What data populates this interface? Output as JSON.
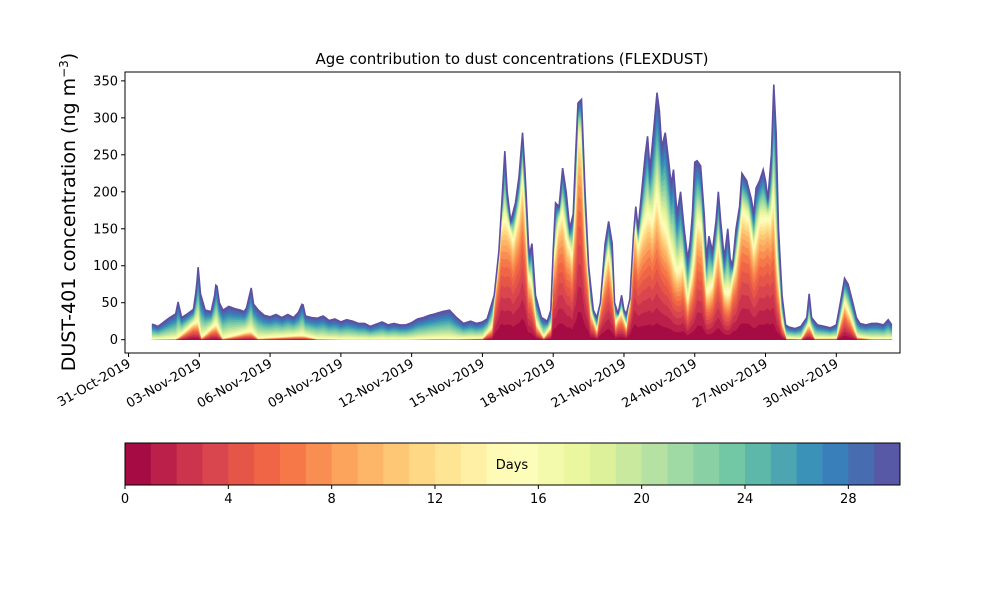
{
  "chart_data": {
    "type": "area",
    "title": "Age contribution to dust concentrations (FLEXDUST)",
    "ylabel_main": "DUST-401 concentration (ng m",
    "ylabel_sup": "−3",
    "ylabel_close": ")",
    "xlabel": "",
    "ylim": [
      -18,
      362
    ],
    "yticks": [
      0,
      50,
      100,
      150,
      200,
      250,
      300,
      350
    ],
    "xlim_days": [
      -0.15,
      32.7
    ],
    "xtick_days": [
      0,
      3,
      6,
      9,
      12,
      15,
      18,
      21,
      24,
      27,
      30
    ],
    "xtick_labels": [
      "31-Oct-2019",
      "03-Nov-2019",
      "06-Nov-2019",
      "09-Nov-2019",
      "12-Nov-2019",
      "15-Nov-2019",
      "18-Nov-2019",
      "21-Nov-2019",
      "24-Nov-2019",
      "27-Nov-2019",
      "30-Nov-2019"
    ],
    "x_start": "01-Nov-2019",
    "x_days_start": 1.0,
    "total_points": [
      [
        1.0,
        21
      ],
      [
        1.25,
        18
      ],
      [
        1.5,
        24
      ],
      [
        1.75,
        30
      ],
      [
        2.0,
        35
      ],
      [
        2.1,
        51
      ],
      [
        2.25,
        30
      ],
      [
        2.5,
        35
      ],
      [
        2.75,
        41
      ],
      [
        2.88,
        70
      ],
      [
        2.95,
        98
      ],
      [
        3.05,
        62
      ],
      [
        3.25,
        40
      ],
      [
        3.5,
        38
      ],
      [
        3.65,
        60
      ],
      [
        3.72,
        79
      ],
      [
        3.85,
        50
      ],
      [
        4.0,
        40
      ],
      [
        4.25,
        45
      ],
      [
        4.5,
        42
      ],
      [
        4.75,
        40
      ],
      [
        4.9,
        38
      ],
      [
        5.0,
        43
      ],
      [
        5.2,
        70
      ],
      [
        5.3,
        48
      ],
      [
        5.5,
        40
      ],
      [
        5.75,
        33
      ],
      [
        6.0,
        31
      ],
      [
        6.25,
        34
      ],
      [
        6.5,
        30
      ],
      [
        6.75,
        34
      ],
      [
        7.0,
        30
      ],
      [
        7.2,
        37
      ],
      [
        7.38,
        50
      ],
      [
        7.5,
        32
      ],
      [
        7.75,
        30
      ],
      [
        8.0,
        29
      ],
      [
        8.25,
        32
      ],
      [
        8.5,
        26
      ],
      [
        8.75,
        28
      ],
      [
        9.0,
        24
      ],
      [
        9.25,
        27
      ],
      [
        9.5,
        25
      ],
      [
        9.75,
        22
      ],
      [
        10.0,
        22
      ],
      [
        10.25,
        18
      ],
      [
        10.5,
        21
      ],
      [
        10.75,
        24
      ],
      [
        11.0,
        20
      ],
      [
        11.25,
        22
      ],
      [
        11.5,
        20
      ],
      [
        11.75,
        20
      ],
      [
        12.0,
        23
      ],
      [
        12.25,
        28
      ],
      [
        12.5,
        30
      ],
      [
        12.75,
        33
      ],
      [
        13.0,
        35
      ],
      [
        13.3,
        38
      ],
      [
        13.6,
        40
      ],
      [
        13.9,
        30
      ],
      [
        14.2,
        22
      ],
      [
        14.5,
        25
      ],
      [
        14.75,
        22
      ],
      [
        15.0,
        24
      ],
      [
        15.2,
        28
      ],
      [
        15.5,
        60
      ],
      [
        15.7,
        120
      ],
      [
        15.85,
        200
      ],
      [
        15.95,
        255
      ],
      [
        16.05,
        200
      ],
      [
        16.2,
        160
      ],
      [
        16.4,
        185
      ],
      [
        16.55,
        220
      ],
      [
        16.7,
        280
      ],
      [
        16.82,
        220
      ],
      [
        16.95,
        130
      ],
      [
        17.0,
        115
      ],
      [
        17.1,
        130
      ],
      [
        17.25,
        60
      ],
      [
        17.5,
        30
      ],
      [
        17.75,
        25
      ],
      [
        17.9,
        40
      ],
      [
        18.0,
        120
      ],
      [
        18.1,
        185
      ],
      [
        18.25,
        180
      ],
      [
        18.4,
        232
      ],
      [
        18.55,
        200
      ],
      [
        18.7,
        150
      ],
      [
        18.85,
        170
      ],
      [
        18.95,
        250
      ],
      [
        19.05,
        320
      ],
      [
        19.2,
        325
      ],
      [
        19.35,
        200
      ],
      [
        19.5,
        100
      ],
      [
        19.7,
        40
      ],
      [
        19.85,
        30
      ],
      [
        20.0,
        50
      ],
      [
        20.2,
        130
      ],
      [
        20.35,
        160
      ],
      [
        20.5,
        130
      ],
      [
        20.6,
        50
      ],
      [
        20.75,
        35
      ],
      [
        20.9,
        60
      ],
      [
        21.0,
        40
      ],
      [
        21.1,
        35
      ],
      [
        21.25,
        55
      ],
      [
        21.4,
        140
      ],
      [
        21.5,
        180
      ],
      [
        21.6,
        150
      ],
      [
        21.75,
        200
      ],
      [
        21.9,
        250
      ],
      [
        22.0,
        275
      ],
      [
        22.1,
        230
      ],
      [
        22.25,
        280
      ],
      [
        22.4,
        334
      ],
      [
        22.5,
        310
      ],
      [
        22.6,
        260
      ],
      [
        22.75,
        280
      ],
      [
        22.9,
        240
      ],
      [
        23.0,
        210
      ],
      [
        23.1,
        230
      ],
      [
        23.25,
        170
      ],
      [
        23.4,
        200
      ],
      [
        23.55,
        150
      ],
      [
        23.7,
        110
      ],
      [
        23.8,
        130
      ],
      [
        23.9,
        170
      ],
      [
        24.0,
        240
      ],
      [
        24.1,
        242
      ],
      [
        24.25,
        235
      ],
      [
        24.4,
        170
      ],
      [
        24.5,
        110
      ],
      [
        24.6,
        140
      ],
      [
        24.75,
        120
      ],
      [
        24.9,
        160
      ],
      [
        25.0,
        200
      ],
      [
        25.1,
        160
      ],
      [
        25.25,
        110
      ],
      [
        25.4,
        150
      ],
      [
        25.5,
        110
      ],
      [
        25.6,
        100
      ],
      [
        25.75,
        150
      ],
      [
        25.9,
        180
      ],
      [
        26.0,
        225
      ],
      [
        26.2,
        215
      ],
      [
        26.4,
        190
      ],
      [
        26.5,
        170
      ],
      [
        26.6,
        205
      ],
      [
        26.75,
        215
      ],
      [
        26.9,
        230
      ],
      [
        27.0,
        215
      ],
      [
        27.1,
        190
      ],
      [
        27.25,
        250
      ],
      [
        27.35,
        345
      ],
      [
        27.45,
        280
      ],
      [
        27.55,
        150
      ],
      [
        27.7,
        60
      ],
      [
        27.85,
        20
      ],
      [
        28.0,
        17
      ],
      [
        28.25,
        15
      ],
      [
        28.5,
        18
      ],
      [
        28.75,
        30
      ],
      [
        28.85,
        62
      ],
      [
        28.95,
        30
      ],
      [
        29.2,
        20
      ],
      [
        29.5,
        18
      ],
      [
        29.75,
        16
      ],
      [
        30.0,
        20
      ],
      [
        30.2,
        55
      ],
      [
        30.35,
        83
      ],
      [
        30.5,
        75
      ],
      [
        30.7,
        50
      ],
      [
        30.85,
        30
      ],
      [
        31.0,
        22
      ],
      [
        31.25,
        20
      ],
      [
        31.5,
        22
      ],
      [
        31.75,
        22
      ],
      [
        32.0,
        20
      ],
      [
        32.2,
        27
      ],
      [
        32.35,
        20
      ]
    ],
    "young_points": [
      [
        1.0,
        1
      ],
      [
        2.0,
        2
      ],
      [
        2.95,
        30
      ],
      [
        3.1,
        5
      ],
      [
        3.72,
        25
      ],
      [
        4.0,
        3
      ],
      [
        5.2,
        15
      ],
      [
        5.5,
        3
      ],
      [
        7.38,
        8
      ],
      [
        8.0,
        2
      ],
      [
        9.0,
        1
      ],
      [
        10.0,
        1
      ],
      [
        11.0,
        1
      ],
      [
        12.0,
        1
      ],
      [
        13.0,
        2
      ],
      [
        14.0,
        2
      ],
      [
        15.0,
        3
      ],
      [
        15.4,
        20
      ],
      [
        15.6,
        90
      ],
      [
        15.8,
        160
      ],
      [
        15.95,
        175
      ],
      [
        16.1,
        160
      ],
      [
        16.3,
        140
      ],
      [
        16.55,
        180
      ],
      [
        16.7,
        230
      ],
      [
        16.82,
        180
      ],
      [
        16.95,
        90
      ],
      [
        17.1,
        80
      ],
      [
        17.3,
        25
      ],
      [
        17.6,
        5
      ],
      [
        17.9,
        20
      ],
      [
        18.0,
        110
      ],
      [
        18.2,
        160
      ],
      [
        18.4,
        180
      ],
      [
        18.6,
        140
      ],
      [
        18.8,
        120
      ],
      [
        18.95,
        200
      ],
      [
        19.05,
        285
      ],
      [
        19.2,
        280
      ],
      [
        19.35,
        160
      ],
      [
        19.6,
        40
      ],
      [
        19.85,
        15
      ],
      [
        20.2,
        100
      ],
      [
        20.35,
        125
      ],
      [
        20.5,
        90
      ],
      [
        20.65,
        25
      ],
      [
        20.9,
        40
      ],
      [
        21.1,
        20
      ],
      [
        21.3,
        80
      ],
      [
        21.45,
        165
      ],
      [
        21.6,
        130
      ],
      [
        21.8,
        160
      ],
      [
        22.0,
        180
      ],
      [
        22.2,
        170
      ],
      [
        22.4,
        210
      ],
      [
        22.6,
        170
      ],
      [
        22.8,
        160
      ],
      [
        23.0,
        130
      ],
      [
        23.25,
        100
      ],
      [
        23.5,
        110
      ],
      [
        23.7,
        60
      ],
      [
        23.9,
        100
      ],
      [
        24.1,
        170
      ],
      [
        24.3,
        160
      ],
      [
        24.5,
        70
      ],
      [
        24.75,
        80
      ],
      [
        25.0,
        140
      ],
      [
        25.25,
        70
      ],
      [
        25.5,
        70
      ],
      [
        25.75,
        110
      ],
      [
        26.0,
        180
      ],
      [
        26.3,
        170
      ],
      [
        26.5,
        130
      ],
      [
        26.75,
        170
      ],
      [
        27.0,
        170
      ],
      [
        27.2,
        170
      ],
      [
        27.35,
        210
      ],
      [
        27.5,
        110
      ],
      [
        27.7,
        30
      ],
      [
        27.9,
        3
      ],
      [
        28.5,
        2
      ],
      [
        28.85,
        25
      ],
      [
        29.1,
        3
      ],
      [
        30.0,
        3
      ],
      [
        30.35,
        55
      ],
      [
        30.6,
        35
      ],
      [
        30.9,
        5
      ],
      [
        31.5,
        2
      ],
      [
        32.35,
        2
      ]
    ],
    "colorbar": {
      "label": "Days",
      "min": 0,
      "max": 30,
      "ticks": [
        0,
        4,
        8,
        12,
        16,
        20,
        24,
        28
      ],
      "n_bins": 30
    },
    "colormap": [
      "#9e0142",
      "#d53e4f",
      "#f46d43",
      "#fdae61",
      "#fee08b",
      "#ffffbf",
      "#e6f598",
      "#abdda4",
      "#66c2a5",
      "#3288bd",
      "#5e4fa2"
    ],
    "grid": false
  }
}
